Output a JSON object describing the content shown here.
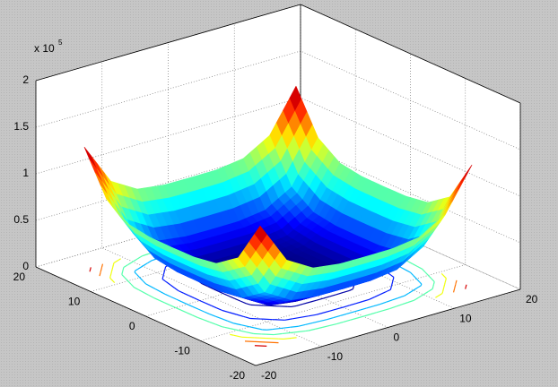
{
  "chart_data": {
    "type": "surfc",
    "x": [
      -16,
      -12,
      -8,
      -4,
      0,
      4,
      8,
      12,
      16
    ],
    "y": [
      -16,
      -12,
      -8,
      -4,
      0,
      4,
      8,
      12,
      16
    ],
    "z": [
      [
        131072,
        86272,
        69632,
        65792,
        65536,
        65792,
        69632,
        86272,
        131072
      ],
      [
        86272,
        41472,
        24832,
        20992,
        20736,
        20992,
        24832,
        41472,
        86272
      ],
      [
        69632,
        24832,
        8192,
        4352,
        4096,
        4352,
        8192,
        24832,
        69632
      ],
      [
        65792,
        20992,
        4352,
        512,
        256,
        512,
        4352,
        20992,
        65792
      ],
      [
        65536,
        20736,
        4096,
        256,
        0,
        256,
        4096,
        20736,
        65536
      ],
      [
        65792,
        20992,
        4352,
        512,
        256,
        512,
        4352,
        20992,
        65792
      ],
      [
        69632,
        24832,
        8192,
        4352,
        4096,
        4352,
        8192,
        24832,
        69632
      ],
      [
        86272,
        41472,
        24832,
        20992,
        20736,
        20992,
        24832,
        41472,
        86272
      ],
      [
        131072,
        86272,
        69632,
        65792,
        65536,
        65792,
        69632,
        86272,
        131072
      ]
    ],
    "contour_levels": [
      5000,
      20000,
      40000,
      60000,
      80000,
      100000,
      120000
    ],
    "colormap": "jet",
    "xlim": [
      -20,
      20
    ],
    "ylim": [
      -20,
      20
    ],
    "zlim": [
      0,
      200000
    ],
    "xticks": [
      -20,
      -10,
      0,
      10,
      20
    ],
    "yticks": [
      -20,
      -10,
      0,
      10,
      20
    ],
    "zticks": [
      0,
      {
        "value": 50000,
        "label": "0.5"
      },
      {
        "value": 100000,
        "label": "1"
      },
      {
        "value": 150000,
        "label": "1.5"
      },
      {
        "value": 200000,
        "label": "2"
      }
    ],
    "z_multiplier": {
      "base": "x 10",
      "exponent": "5"
    },
    "grid": true
  }
}
